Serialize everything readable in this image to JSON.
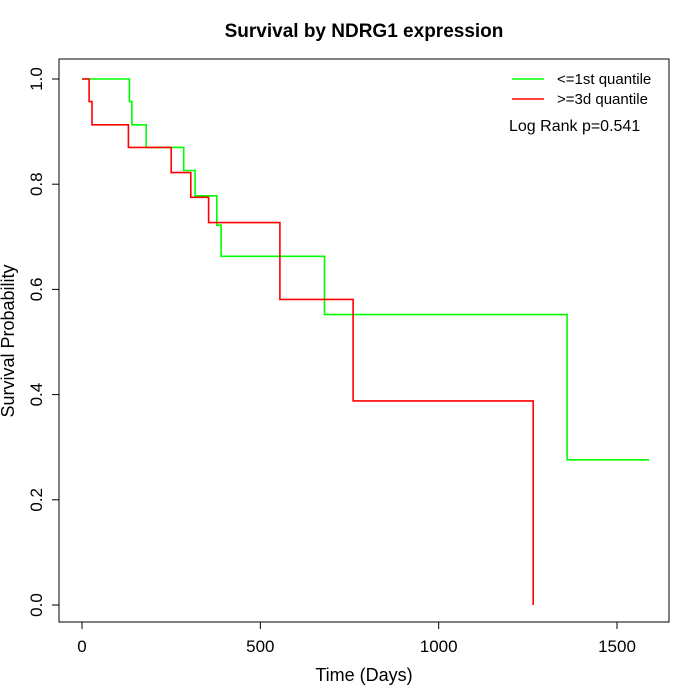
{
  "chart_data": {
    "type": "line",
    "title": "Survival by NDRG1 expression",
    "xlabel": "Time (Days)",
    "ylabel": "Survival Probability",
    "xlim": [
      0,
      1650
    ],
    "ylim": [
      0,
      1.0
    ],
    "x_ticks": [
      0,
      500,
      1000,
      1500
    ],
    "x_tick_labels": [
      "0",
      "500",
      "1000",
      "1500"
    ],
    "y_ticks": [
      0.0,
      0.2,
      0.4,
      0.6,
      0.8,
      1.0
    ],
    "y_tick_labels": [
      "0.0",
      "0.2",
      "0.4",
      "0.6",
      "0.8",
      "1.0"
    ],
    "grid": false,
    "legend_position": "top-right",
    "annotation": "Log Rank p=0.541",
    "series": [
      {
        "name": "<=1st quantile",
        "color": "#00ff00",
        "step_points": [
          [
            0,
            1.0
          ],
          [
            133,
            1.0
          ],
          [
            133,
            0.957
          ],
          [
            140,
            0.957
          ],
          [
            140,
            0.913
          ],
          [
            180,
            0.913
          ],
          [
            180,
            0.87
          ],
          [
            285,
            0.87
          ],
          [
            285,
            0.826
          ],
          [
            317,
            0.826
          ],
          [
            317,
            0.778
          ],
          [
            378,
            0.778
          ],
          [
            378,
            0.722
          ],
          [
            390,
            0.722
          ],
          [
            390,
            0.663
          ],
          [
            680,
            0.663
          ],
          [
            680,
            0.552
          ],
          [
            1360,
            0.552
          ],
          [
            1360,
            0.276
          ],
          [
            1590,
            0.276
          ]
        ]
      },
      {
        "name": ">=3d quantile",
        "color": "#ff0000",
        "step_points": [
          [
            0,
            1.0
          ],
          [
            20,
            1.0
          ],
          [
            20,
            0.957
          ],
          [
            28,
            0.957
          ],
          [
            28,
            0.913
          ],
          [
            130,
            0.913
          ],
          [
            130,
            0.87
          ],
          [
            250,
            0.87
          ],
          [
            250,
            0.822
          ],
          [
            305,
            0.822
          ],
          [
            305,
            0.775
          ],
          [
            355,
            0.775
          ],
          [
            355,
            0.727
          ],
          [
            555,
            0.727
          ],
          [
            555,
            0.581
          ],
          [
            760,
            0.581
          ],
          [
            760,
            0.388
          ],
          [
            1265,
            0.388
          ],
          [
            1265,
            0.0
          ]
        ]
      }
    ]
  }
}
